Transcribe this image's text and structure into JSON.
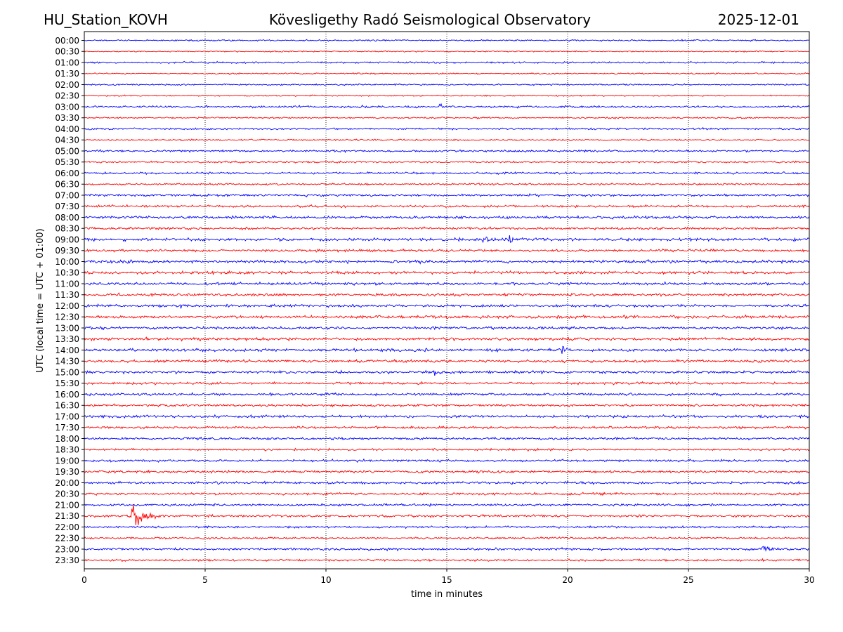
{
  "header": {
    "station": "HU_Station_KOVH",
    "observatory": "Kövesligethy Radó Seismological Observatory",
    "date": "2025-12-01"
  },
  "chart_data": {
    "type": "line",
    "title": "Kövesligethy Radó Seismological Observatory",
    "xlabel": "time in minutes",
    "ylabel": "UTC (local time = UTC + 01:00)",
    "xlim": [
      0,
      30
    ],
    "x_ticks": [
      0,
      5,
      10,
      15,
      20,
      25,
      30
    ],
    "x_tick_labels": [
      "0",
      "5",
      "10",
      "15",
      "20",
      "25",
      "30"
    ],
    "vertical_gridlines": [
      5,
      10,
      15,
      20,
      25
    ],
    "grid_style": "dotted",
    "trace_colors": [
      "#0000ff",
      "#ff0000"
    ],
    "trace_labels": [
      "00:00",
      "00:30",
      "01:00",
      "01:30",
      "02:00",
      "02:30",
      "03:00",
      "03:30",
      "04:00",
      "04:30",
      "05:00",
      "05:30",
      "06:00",
      "06:30",
      "07:00",
      "07:30",
      "08:00",
      "08:30",
      "09:00",
      "09:30",
      "10:00",
      "10:30",
      "11:00",
      "11:30",
      "12:00",
      "12:30",
      "13:00",
      "13:30",
      "14:00",
      "14:30",
      "15:00",
      "15:30",
      "16:00",
      "16:30",
      "17:00",
      "17:30",
      "18:00",
      "18:30",
      "19:00",
      "19:30",
      "20:00",
      "20:30",
      "21:00",
      "21:30",
      "22:00",
      "22:30",
      "23:00",
      "23:30"
    ],
    "noise_amplitude": [
      0.06,
      0.05,
      0.07,
      0.05,
      0.06,
      0.05,
      0.08,
      0.06,
      0.07,
      0.06,
      0.08,
      0.07,
      0.08,
      0.07,
      0.09,
      0.09,
      0.1,
      0.09,
      0.11,
      0.1,
      0.11,
      0.11,
      0.1,
      0.1,
      0.1,
      0.11,
      0.1,
      0.11,
      0.11,
      0.1,
      0.1,
      0.09,
      0.1,
      0.09,
      0.1,
      0.09,
      0.09,
      0.08,
      0.09,
      0.09,
      0.1,
      0.09,
      0.09,
      0.09,
      0.08,
      0.07,
      0.09,
      0.08
    ],
    "events": [
      {
        "trace": "03:00",
        "minute": 14.7,
        "amplitude": 0.35,
        "duration": 0.5
      },
      {
        "trace": "03:00",
        "minute": 11.5,
        "amplitude": 0.15,
        "duration": 0.8
      },
      {
        "trace": "07:00",
        "minute": 9.1,
        "amplitude": 0.25,
        "duration": 0.2
      },
      {
        "trace": "09:00",
        "minute": 17.6,
        "amplitude": 0.55,
        "duration": 0.5
      },
      {
        "trace": "09:00",
        "minute": 16.5,
        "amplitude": 0.18,
        "duration": 1.2
      },
      {
        "trace": "10:30",
        "minute": 0.3,
        "amplitude": 0.25,
        "duration": 0.3
      },
      {
        "trace": "12:00",
        "minute": 4.0,
        "amplitude": 0.25,
        "duration": 0.2
      },
      {
        "trace": "14:00",
        "minute": 19.7,
        "amplitude": 0.65,
        "duration": 0.4
      },
      {
        "trace": "15:00",
        "minute": 14.5,
        "amplitude": 0.3,
        "duration": 0.5
      },
      {
        "trace": "21:30",
        "minute": 2.0,
        "amplitude": 1.15,
        "duration": 1.3
      },
      {
        "trace": "23:00",
        "minute": 28.0,
        "amplitude": 0.35,
        "duration": 1.2
      },
      {
        "trace": "23:30",
        "minute": 29.4,
        "amplitude": 0.2,
        "duration": 0.3
      }
    ]
  }
}
